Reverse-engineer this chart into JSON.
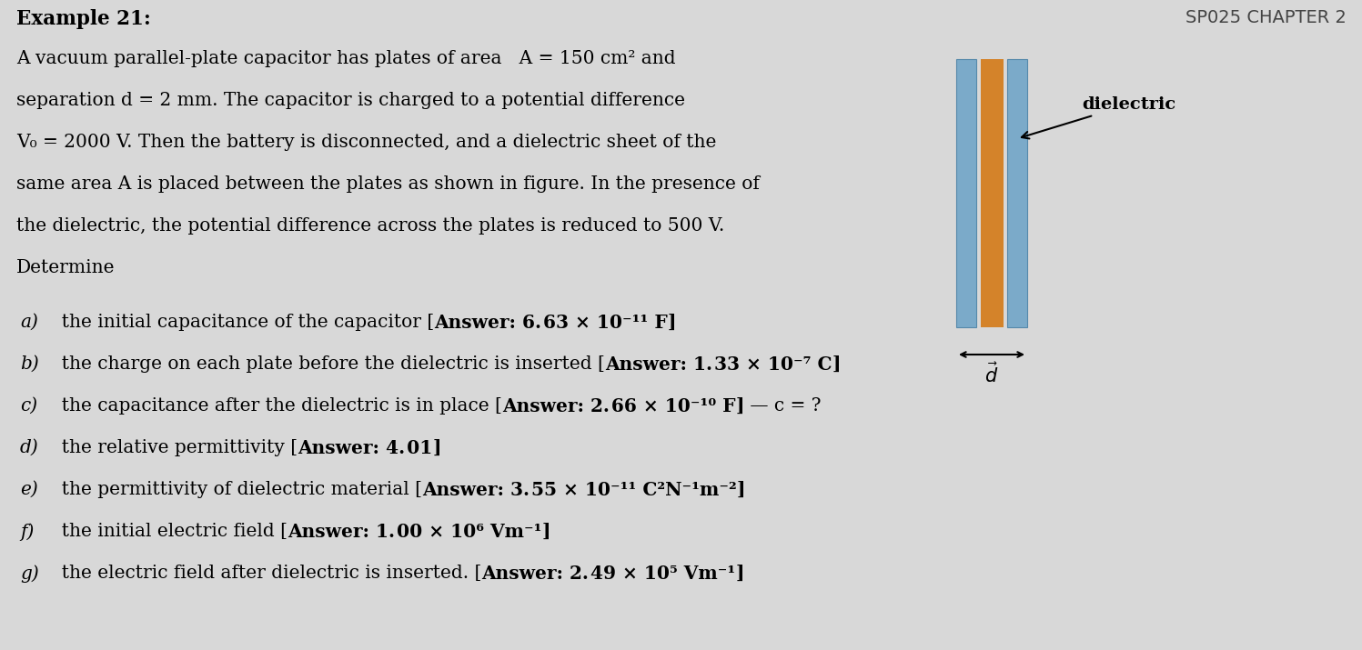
{
  "bg_color": "#d8d8d8",
  "title_left": "Example 21:",
  "title_right": "SP025 CHAPTER 2",
  "lines": [
    "A vacuum parallel-plate capacitor has plates of area   A = 150 cm² and",
    "separation d = 2 mm. The capacitor is charged to a potential difference",
    "V₀ = 2000 V. Then the battery is disconnected, and a dielectric sheet of the",
    "same area A is placed between the plates as shown in figure. In the presence of",
    "the dielectric, the potential difference across the plates is reduced to 500 V.",
    "Determine"
  ],
  "items": [
    {
      "label": "a)",
      "normal": "  the initial capacitance of the capacitor [",
      "bold": "Answer: 6. 63 × 10⁻¹¹ F",
      "normal2": "]"
    },
    {
      "label": "b)",
      "normal": "  the charge on each plate before the dielectric is inserted [",
      "bold": "Answer: 1. 33 × 10⁻⁷ C",
      "normal2": "]"
    },
    {
      "label": "c)",
      "normal": "  the capacitance after the dielectric is in place [",
      "bold": "Answer: 2. 66 × 10⁻¹⁰ F",
      "normal2": "]",
      "note": " — c = ?"
    },
    {
      "label": "d)",
      "normal": "  the relative permittivity [",
      "bold": "Answer: 4. 01",
      "normal2": "]"
    },
    {
      "label": "e)",
      "normal": "  the permittivity of dielectric material [",
      "bold": "Answer: 3. 55 × 10⁻¹¹ C²N⁻¹m⁻²",
      "normal2": "]"
    },
    {
      "label": "f)",
      "normal": "  the initial electric field [",
      "bold": "Answer: 1. 00 × 10⁶ Vm⁻¹",
      "normal2": "]"
    },
    {
      "label": "g)",
      "normal": "  the electric field after dielectric is inserted. [",
      "bold": "Answer: 2. 49 × 10⁵ Vm⁻¹",
      "normal2": "]"
    }
  ],
  "plate_color": "#7baac9",
  "dielectric_color": "#d4832a",
  "dielectric_label": "dielectric"
}
